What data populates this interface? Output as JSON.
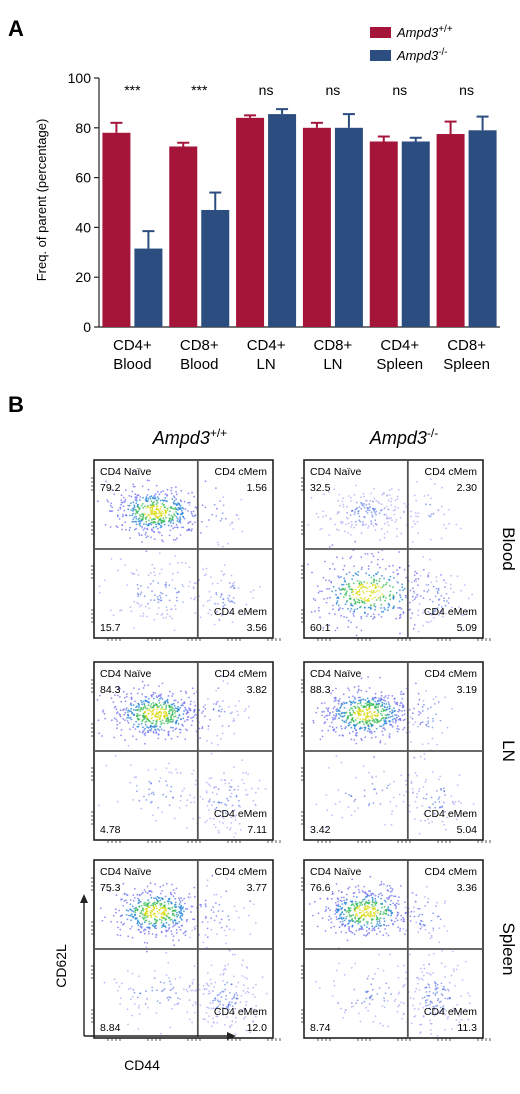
{
  "panel_labels": {
    "a": "A",
    "b": "B"
  },
  "colors": {
    "wt": "#a5153a",
    "ko": "#2b4d80"
  },
  "chart_data": [
    {
      "type": "bar",
      "ylabel": "Freq. of parent (percentage)",
      "ylim": [
        0,
        100
      ],
      "yticks": [
        0,
        20,
        40,
        60,
        80,
        100
      ],
      "categories": [
        [
          "CD4+",
          "Blood"
        ],
        [
          "CD8+",
          "Blood"
        ],
        [
          "CD4+",
          "LN"
        ],
        [
          "CD8+",
          "LN"
        ],
        [
          "CD4+",
          "Spleen"
        ],
        [
          "CD8+",
          "Spleen"
        ]
      ],
      "legend_position": "top-right",
      "series": [
        {
          "name_base": "Ampd3",
          "name_sup": "+/+",
          "color": "#a5153a",
          "values": [
            78,
            72.5,
            84,
            80,
            74.5,
            77.5
          ],
          "errors": [
            4,
            1.5,
            1,
            2,
            2,
            5
          ]
        },
        {
          "name_base": "Ampd3",
          "name_sup": "-/-",
          "color": "#2b4d80",
          "values": [
            31.5,
            47,
            85.5,
            80,
            74.5,
            79
          ],
          "errors": [
            7,
            7,
            2,
            5.5,
            1.5,
            5.5
          ]
        }
      ],
      "significance": [
        "***",
        "***",
        "ns",
        "ns",
        "ns",
        "ns"
      ]
    },
    {
      "type": "scatter",
      "subtype": "flow-cytometry-quadrant-grid",
      "column_headers": [
        {
          "base": "Ampd3",
          "sup": "+/+"
        },
        {
          "base": "Ampd3",
          "sup": "-/-"
        }
      ],
      "row_labels": [
        "Blood",
        "LN",
        "Spleen"
      ],
      "xlabel": "CD44",
      "ylabel": "CD62L",
      "quadrant_names": {
        "tl": "CD4 Naïve",
        "tr": "CD4 cMem",
        "br": "CD4 eMem"
      },
      "plots": [
        [
          {
            "tl": "79.2",
            "tr": "1.56",
            "bl": "15.7",
            "br": "3.56"
          },
          {
            "tl": "32.5",
            "tr": "2.30",
            "bl": "60.1",
            "br": "5.09"
          }
        ],
        [
          {
            "tl": "84.3",
            "tr": "3.82",
            "bl": "4.78",
            "br": "7.11"
          },
          {
            "tl": "88.3",
            "tr": "3.19",
            "bl": "3.42",
            "br": "5.04"
          }
        ],
        [
          {
            "tl": "75.3",
            "tr": "3.77",
            "bl": "8.84",
            "br": "12.0"
          },
          {
            "tl": "76.6",
            "tr": "3.36",
            "bl": "8.74",
            "br": "11.3"
          }
        ]
      ]
    }
  ]
}
